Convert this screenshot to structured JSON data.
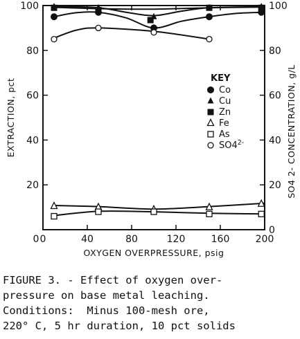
{
  "chart_data": {
    "type": "line",
    "xlabel": "OXYGEN OVERPRESSURE, psig",
    "ylabel_left": "EXTRACTION, pct",
    "ylabel_right": "SO4 2- CONCENTRATION, g/L",
    "xlim": [
      0,
      200
    ],
    "ylim_left": [
      0,
      100
    ],
    "ylim_right": [
      0,
      100
    ],
    "x_ticks": [
      "0",
      "40",
      "80",
      "120",
      "160",
      "200"
    ],
    "y_ticks_left": [
      "20",
      "40",
      "60",
      "80",
      "100"
    ],
    "y_ticks_right": [
      "0",
      "20",
      "40",
      "60",
      "80",
      "100"
    ],
    "legend_title": "KEY",
    "legend_position": "right-middle",
    "series": [
      {
        "name": "Co",
        "marker": "filled-circle",
        "x": [
          10,
          50,
          100,
          150,
          197
        ],
        "y": [
          95,
          97,
          90,
          95,
          97
        ],
        "curve": [
          [
            10,
            95
          ],
          [
            30,
            96.8
          ],
          [
            50,
            97
          ],
          [
            75,
            94.5
          ],
          [
            100,
            90
          ],
          [
            125,
            93
          ],
          [
            150,
            95
          ],
          [
            175,
            96.5
          ],
          [
            200,
            97
          ]
        ]
      },
      {
        "name": "Cu",
        "marker": "filled-triangle",
        "x": [
          10,
          50,
          100,
          150,
          197
        ],
        "y": [
          99.5,
          99,
          95,
          99,
          99.5
        ],
        "curve": [
          [
            10,
            99.6
          ],
          [
            50,
            99
          ],
          [
            75,
            97
          ],
          [
            100,
            95.5
          ],
          [
            125,
            97.5
          ],
          [
            150,
            99
          ],
          [
            200,
            99.5
          ]
        ]
      },
      {
        "name": "Zn",
        "marker": "filled-square",
        "x": [
          10,
          50,
          97,
          150,
          197
        ],
        "y": [
          99,
          98,
          93.5,
          99,
          99
        ],
        "curve": [
          [
            10,
            99.2
          ],
          [
            50,
            98.6
          ],
          [
            100,
            98.4
          ],
          [
            150,
            99
          ],
          [
            200,
            99.3
          ]
        ]
      },
      {
        "name": "Fe",
        "marker": "open-triangle",
        "x": [
          10,
          50,
          100,
          150,
          197
        ],
        "y": [
          10.5,
          10,
          9,
          10,
          11.5
        ],
        "curve": [
          [
            10,
            10.8
          ],
          [
            50,
            10.3
          ],
          [
            100,
            9.2
          ],
          [
            150,
            10.3
          ],
          [
            200,
            11.8
          ]
        ]
      },
      {
        "name": "As",
        "marker": "open-square",
        "x": [
          10,
          50,
          100,
          150,
          197
        ],
        "y": [
          6,
          8,
          8,
          7,
          7
        ],
        "curve": [
          [
            10,
            6.3
          ],
          [
            50,
            8.2
          ],
          [
            100,
            8
          ],
          [
            150,
            7.3
          ],
          [
            200,
            7
          ]
        ]
      },
      {
        "name": "SO4 2-",
        "marker": "open-circle",
        "x": [
          10,
          50,
          100,
          150
        ],
        "y": [
          85,
          90,
          88,
          85
        ],
        "curve": [
          [
            10,
            85.5
          ],
          [
            30,
            89
          ],
          [
            50,
            90
          ],
          [
            100,
            88.5
          ],
          [
            150,
            85
          ]
        ]
      }
    ]
  },
  "caption": {
    "lines": [
      "FIGURE 3. - Effect of oxygen over-",
      "pressure on base metal leaching.",
      "Conditions:  Minus 100-mesh ore,",
      "220° C, 5 hr duration, 10 pct solids"
    ]
  }
}
